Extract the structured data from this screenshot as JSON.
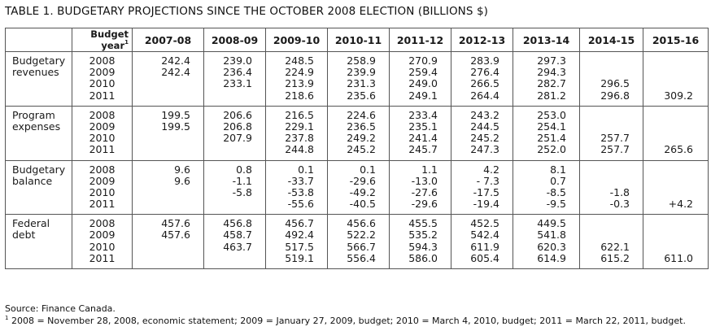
{
  "title": "TABLE 1. BUDGETARY PROJECTIONS SINCE THE OCTOBER 2008 ELECTION (BILLIONS $)",
  "header": {
    "budget_year": "Budget year",
    "budget_year_note": "1",
    "fiscal_years": [
      "2007-08",
      "2008-09",
      "2009-10",
      "2010-11",
      "2011-12",
      "2012-13",
      "2013-14",
      "2014-15",
      "2015-16"
    ]
  },
  "budget_years": [
    "2008",
    "2009",
    "2010",
    "2011"
  ],
  "sections": [
    {
      "label": [
        "Budgetary",
        "revenues"
      ],
      "columns": [
        [
          "242.4",
          "242.4",
          "",
          ""
        ],
        [
          "239.0",
          "236.4",
          "233.1",
          ""
        ],
        [
          "248.5",
          "224.9",
          "213.9",
          "218.6"
        ],
        [
          "258.9",
          "239.9",
          "231.3",
          "235.6"
        ],
        [
          "270.9",
          "259.4",
          "249.0",
          "249.1"
        ],
        [
          "283.9",
          "276.4",
          "266.5",
          "264.4"
        ],
        [
          "297.3",
          "294.3",
          "282.7",
          "281.2"
        ],
        [
          "",
          "",
          "296.5",
          "296.8"
        ],
        [
          "",
          "",
          "",
          "309.2"
        ]
      ]
    },
    {
      "label": [
        "Program",
        "expenses"
      ],
      "columns": [
        [
          "199.5",
          "199.5",
          "",
          ""
        ],
        [
          "206.6",
          "206.8",
          "207.9",
          ""
        ],
        [
          "216.5",
          "229.1",
          "237.8",
          "244.8"
        ],
        [
          "224.6",
          "236.5",
          "249.2",
          "245.2"
        ],
        [
          "233.4",
          "235.1",
          "241.4",
          "245.7"
        ],
        [
          "243.2",
          "244.5",
          "245.2",
          "247.3"
        ],
        [
          "253.0",
          "254.1",
          "251.4",
          "252.0"
        ],
        [
          "",
          "",
          "257.7",
          "257.7"
        ],
        [
          "",
          "",
          "",
          "265.6"
        ]
      ]
    },
    {
      "label": [
        "Budgetary",
        "balance"
      ],
      "columns": [
        [
          "9.6",
          "9.6",
          "",
          ""
        ],
        [
          "0.8",
          "-1.1",
          "-5.8",
          ""
        ],
        [
          "0.1",
          "-33.7",
          "-53.8",
          "-55.6"
        ],
        [
          "0.1",
          "-29.6",
          "-49.2",
          "-40.5"
        ],
        [
          "1.1",
          "-13.0",
          "-27.6",
          "-29.6"
        ],
        [
          "4.2",
          "- 7.3",
          "-17.5",
          "-19.4"
        ],
        [
          "8.1",
          "0.7",
          "-8.5",
          "-9.5"
        ],
        [
          "",
          "",
          "-1.8",
          "-0.3"
        ],
        [
          "",
          "",
          "",
          "+4.2"
        ]
      ]
    },
    {
      "label": [
        "Federal",
        "debt"
      ],
      "columns": [
        [
          "457.6",
          "457.6",
          "",
          ""
        ],
        [
          "456.8",
          "458.7",
          "463.7",
          ""
        ],
        [
          "456.7",
          "492.4",
          "517.5",
          "519.1"
        ],
        [
          "456.6",
          "522.2",
          "566.7",
          "556.4"
        ],
        [
          "455.5",
          "535.2",
          "594.3",
          "586.0"
        ],
        [
          "452.5",
          "542.4",
          "611.9",
          "605.4"
        ],
        [
          "449.5",
          "541.8",
          "620.3",
          "614.9"
        ],
        [
          "",
          "",
          "622.1",
          "615.2"
        ],
        [
          "",
          "",
          "",
          "611.0"
        ]
      ]
    }
  ],
  "source": "Source: Finance Canada.",
  "footnote_mark": "1",
  "footnote": " 2008 = November 28, 2008, economic statement; 2009 = January 27, 2009, budget; 2010 = March 4, 2010, budget; 2011 = March 22, 2011, budget."
}
